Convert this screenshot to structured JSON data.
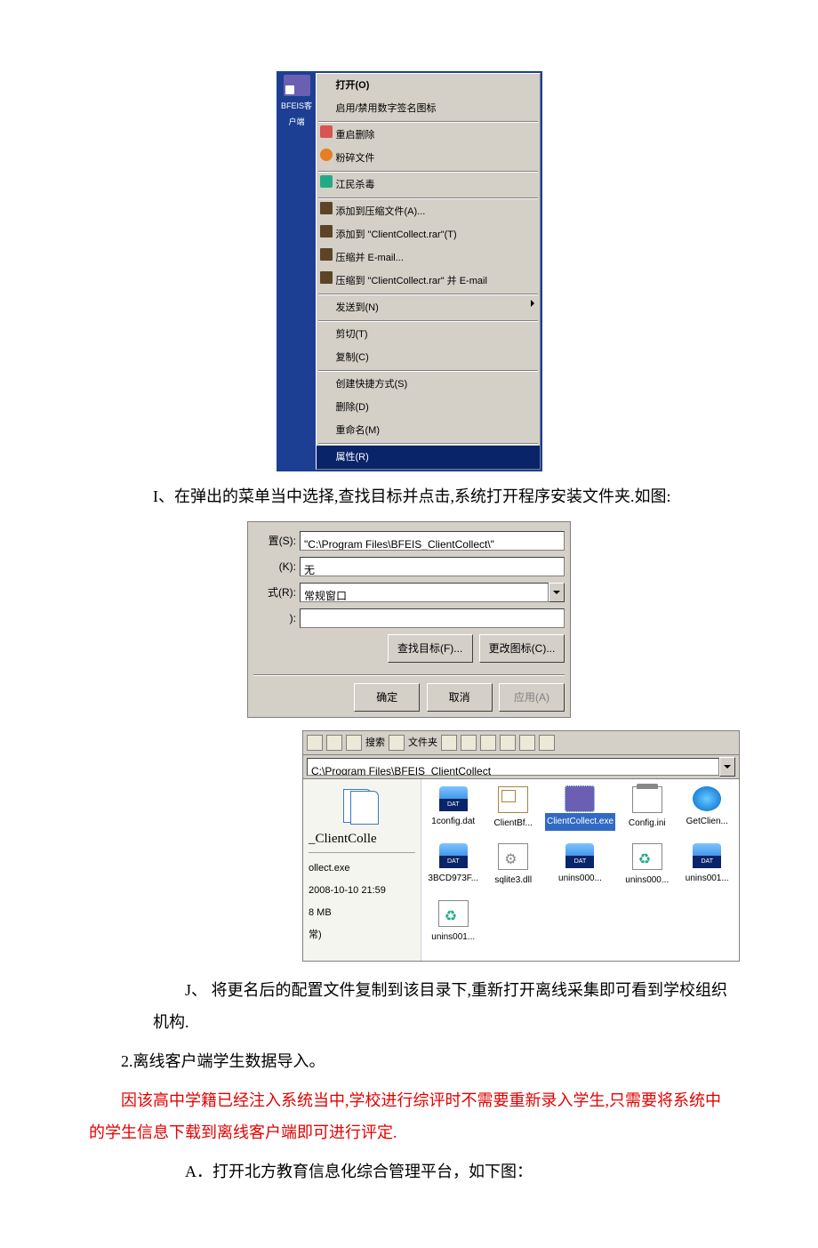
{
  "context_menu": {
    "desktop_icon_label": "BFEIS客户端",
    "items": [
      {
        "label": "打开(O)",
        "bold": true
      },
      {
        "label": "启用/禁用数字签名图标"
      },
      {
        "sep": true
      },
      {
        "label": "重启删除",
        "icon": "ico-red"
      },
      {
        "label": "粉碎文件",
        "icon": "ico-orange"
      },
      {
        "sep": true
      },
      {
        "label": "江民杀毒",
        "icon": "ico-teal"
      },
      {
        "sep": true
      },
      {
        "label": "添加到压缩文件(A)...",
        "icon": "ico-book"
      },
      {
        "label": "添加到 \"ClientCollect.rar\"(T)",
        "icon": "ico-book"
      },
      {
        "label": "压缩并 E-mail...",
        "icon": "ico-book"
      },
      {
        "label": "压缩到 \"ClientCollect.rar\" 并 E-mail",
        "icon": "ico-book"
      },
      {
        "sep": true
      },
      {
        "label": "发送到(N)",
        "submenu": true
      },
      {
        "sep": true
      },
      {
        "label": "剪切(T)"
      },
      {
        "label": "复制(C)"
      },
      {
        "sep": true
      },
      {
        "label": "创建快捷方式(S)"
      },
      {
        "label": "删除(D)"
      },
      {
        "label": "重命名(M)"
      },
      {
        "sep": true
      },
      {
        "label": "属性(R)",
        "selected": true
      }
    ]
  },
  "text_I": "I、在弹出的菜单当中选择,查找目标并点击,系统打开程序安装文件夹.如图:",
  "properties_dialog": {
    "rows": {
      "start_label": "置(S):",
      "start_value": "\"C:\\Program Files\\BFEIS_ClientCollect\\\"",
      "key_label": "(K):",
      "key_value": "无",
      "run_label": "式(R):",
      "run_value": "常规窗口",
      "comment_label": "):",
      "comment_value": ""
    },
    "btn_find": "查找目标(F)...",
    "btn_icon": "更改图标(C)...",
    "btn_ok": "确定",
    "btn_cancel": "取消",
    "btn_apply": "应用(A)"
  },
  "explorer": {
    "toolbar": {
      "search": "搜索",
      "folders": "文件夹"
    },
    "address": "C:\\Program Files\\BFEIS_ClientCollect",
    "side": {
      "title": "_ClientColle",
      "line1": "ollect.exe",
      "line2": "2008-10-10 21:59",
      "line3": "8 MB",
      "line4": "常)"
    },
    "files": [
      {
        "name": "1config.dat",
        "type": "dat"
      },
      {
        "name": "ClientBf...",
        "type": "doc"
      },
      {
        "name": "ClientCollect.exe",
        "type": "exe",
        "selected": true
      },
      {
        "name": "Config.ini",
        "type": "ini"
      },
      {
        "name": "GetClien...",
        "type": "ie"
      },
      {
        "name": "3BCD973F...",
        "type": "dat"
      },
      {
        "name": "sqlite3.dll",
        "type": "dll"
      },
      {
        "name": "unins000...",
        "type": "dat"
      },
      {
        "name": "unins000...",
        "type": "recyc"
      },
      {
        "name": "unins001...",
        "type": "dat"
      },
      {
        "name": "unins001...",
        "type": "recyc"
      }
    ]
  },
  "text_J": "J、 将更名后的配置文件复制到该目录下,重新打开离线采集即可看到学校组织机构.",
  "text_2": "2.离线客户端学生数据导入。",
  "text_red": "因该高中学籍已经注入系统当中,学校进行综评时不需要重新录入学生,只需要将系统中的学生信息下载到离线客户端即可进行评定.",
  "text_A": "A．打开北方教育信息化综合管理平台，如下图："
}
